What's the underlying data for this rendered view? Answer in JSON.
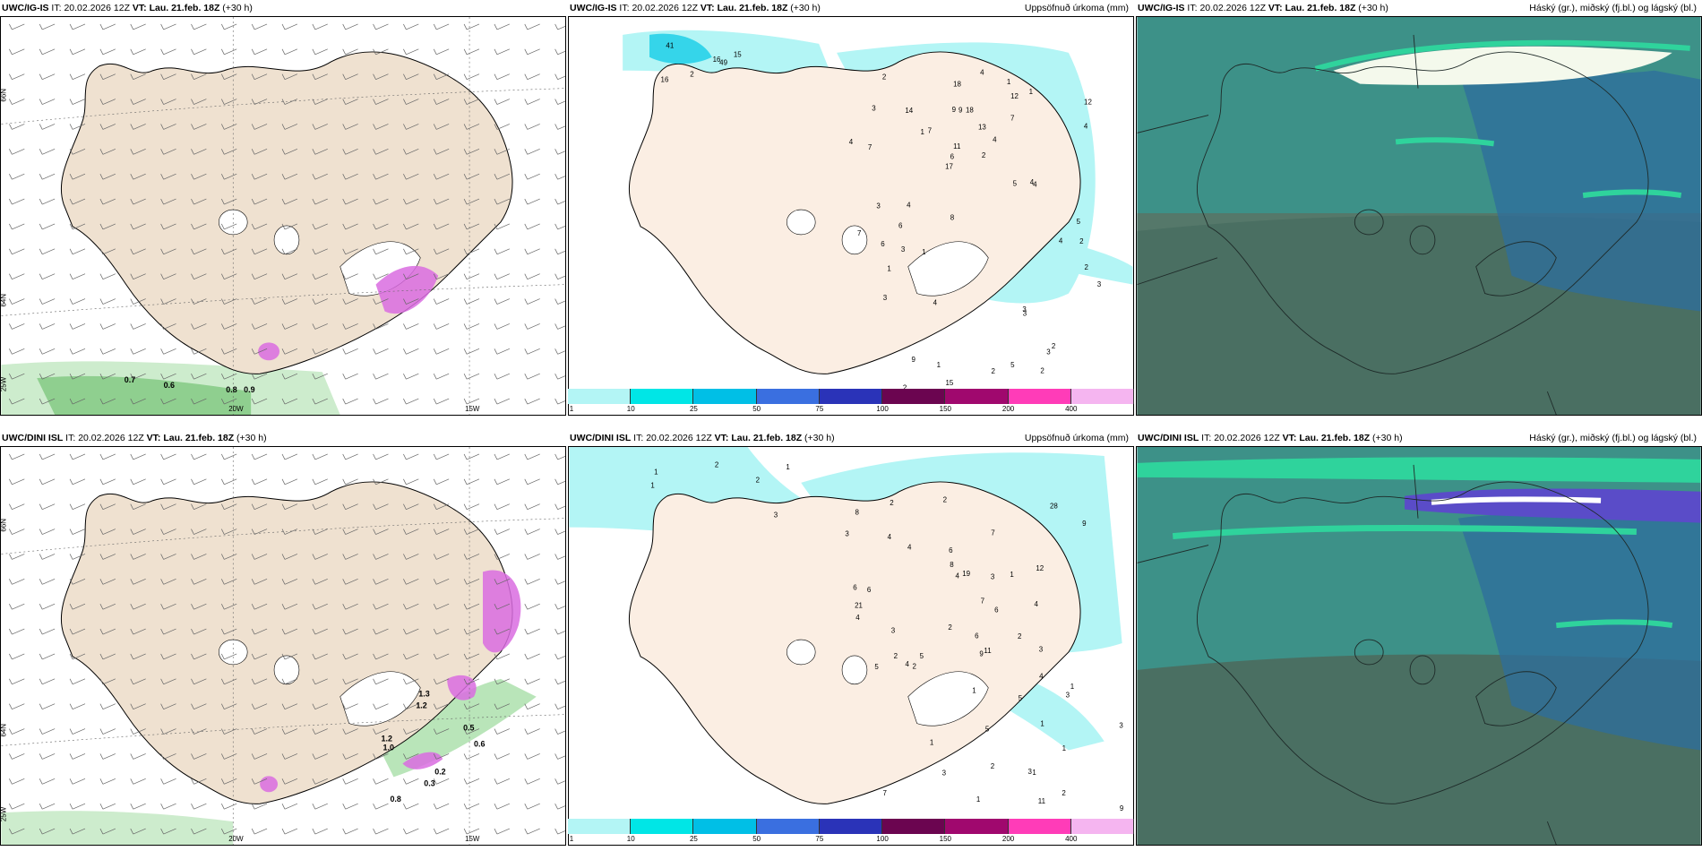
{
  "rows": [
    {
      "model": "UWC/IG-IS",
      "it_label": "IT:",
      "it_value": "20.02.2026 12Z",
      "vt_label": "VT:",
      "vt_value": "Lau. 21.feb. 18Z",
      "lead": "(+30 h)",
      "wind_labels": [
        "0.7",
        "0.6",
        "0.8",
        "0.9"
      ],
      "precip_labels": [
        "49",
        "41",
        "16",
        "16",
        "15",
        "2",
        "1",
        "18",
        "12",
        "2",
        "2",
        "2",
        "7",
        "12",
        "17",
        "7",
        "6",
        "9",
        "13",
        "3",
        "7",
        "7",
        "6",
        "9",
        "4",
        "4",
        "3",
        "18",
        "4",
        "5",
        "4",
        "6",
        "8",
        "11",
        "14",
        "1",
        "4",
        "4",
        "5",
        "4",
        "4",
        "1",
        "4",
        "3",
        "15",
        "3",
        "3",
        "2",
        "2",
        "3",
        "9",
        "3",
        "1",
        "2",
        "2",
        "1",
        "1",
        "3",
        "5",
        "2"
      ]
    },
    {
      "model": "UWC/DINI ISL",
      "it_label": "IT:",
      "it_value": "20.02.2026 12Z",
      "vt_label": "VT:",
      "vt_value": "Lau. 21.feb. 18Z",
      "lead": "(+30 h)",
      "wind_labels": [
        "1.3",
        "1.2",
        "1.2",
        "1.0",
        "0.5",
        "0.6",
        "0.2",
        "0.3",
        "0.8"
      ],
      "precip_labels": [
        "1",
        "2",
        "2",
        "1",
        "1",
        "3",
        "6",
        "7",
        "6",
        "28",
        "19",
        "4",
        "2",
        "3",
        "4",
        "3",
        "11",
        "6",
        "7",
        "2",
        "2",
        "3",
        "9",
        "8",
        "2",
        "4",
        "6",
        "2",
        "2",
        "9",
        "21",
        "4",
        "3",
        "5",
        "4",
        "4",
        "12",
        "8",
        "5",
        "4",
        "6",
        "1",
        "9",
        "3",
        "2",
        "3",
        "3",
        "7",
        "1",
        "1",
        "1",
        "2",
        "1",
        "1",
        "11",
        "1",
        "3",
        "5",
        "1",
        "5"
      ]
    }
  ],
  "precip_title": "Uppsöfnuð úrkoma (mm)",
  "cloud_title": "Háský (gr.), miðský (fj.bl.) og lágský (bl.)",
  "lat_labels": [
    "66N",
    "64N",
    "25W"
  ],
  "lon_labels": [
    "20W",
    "15W"
  ],
  "colorbar": {
    "ticks": [
      "1",
      "10",
      "25",
      "50",
      "75",
      "100",
      "150",
      "200",
      "400"
    ],
    "colors": [
      "#b3f5f5",
      "#00e6e6",
      "#00bfe6",
      "#3a6fe0",
      "#2a33b8",
      "#6b0550",
      "#a0086e",
      "#ff3cb8",
      "#f5b5f0"
    ]
  }
}
